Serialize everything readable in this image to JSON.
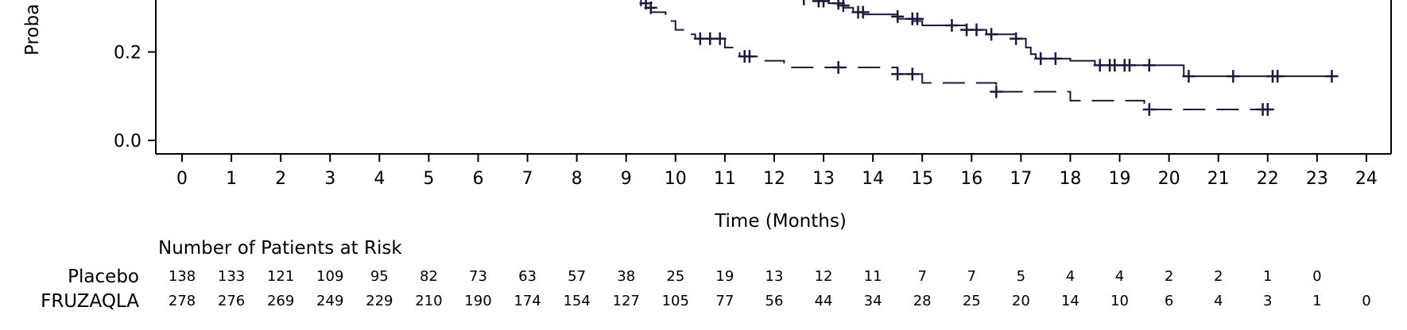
{
  "chart_data": {
    "type": "line",
    "chart_kind": "kaplan-meier",
    "ylabel": "Proba",
    "xlabel": "Time (Months)",
    "xlim": [
      0,
      24
    ],
    "ylim_visible": [
      0.0,
      0.3
    ],
    "x_ticks": [
      0,
      1,
      2,
      3,
      4,
      5,
      6,
      7,
      8,
      9,
      10,
      11,
      12,
      13,
      14,
      15,
      16,
      17,
      18,
      19,
      20,
      21,
      22,
      23,
      24
    ],
    "y_ticks": [
      0.0,
      0.2
    ],
    "line_color": "#1a1a3a",
    "series": [
      {
        "name": "Placebo",
        "style": "dashed",
        "steps": [
          [
            9.0,
            0.32
          ],
          [
            9.3,
            0.3
          ],
          [
            9.5,
            0.29
          ],
          [
            9.8,
            0.27
          ],
          [
            10.0,
            0.25
          ],
          [
            10.2,
            0.24
          ],
          [
            10.4,
            0.23
          ],
          [
            11.0,
            0.21
          ],
          [
            11.3,
            0.19
          ],
          [
            11.8,
            0.18
          ],
          [
            12.2,
            0.165
          ],
          [
            14.5,
            0.15
          ],
          [
            15.0,
            0.13
          ],
          [
            16.5,
            0.11
          ],
          [
            18.0,
            0.09
          ],
          [
            19.5,
            0.07
          ],
          [
            22.0,
            0.07
          ]
        ],
        "censor_marks": [
          [
            9.4,
            0.31
          ],
          [
            9.5,
            0.3
          ],
          [
            10.5,
            0.23
          ],
          [
            10.7,
            0.23
          ],
          [
            10.9,
            0.23
          ],
          [
            11.4,
            0.19
          ],
          [
            11.5,
            0.19
          ],
          [
            13.3,
            0.165
          ],
          [
            14.5,
            0.15
          ],
          [
            14.8,
            0.15
          ],
          [
            16.5,
            0.11
          ],
          [
            19.6,
            0.07
          ],
          [
            21.9,
            0.07
          ],
          [
            22.0,
            0.07
          ]
        ]
      },
      {
        "name": "FRUZAQLA",
        "style": "solid",
        "steps": [
          [
            12.6,
            0.32
          ],
          [
            13.1,
            0.31
          ],
          [
            13.4,
            0.3
          ],
          [
            13.6,
            0.29
          ],
          [
            13.8,
            0.285
          ],
          [
            14.5,
            0.275
          ],
          [
            14.8,
            0.27
          ],
          [
            15.0,
            0.26
          ],
          [
            15.9,
            0.25
          ],
          [
            16.3,
            0.24
          ],
          [
            16.9,
            0.23
          ],
          [
            17.1,
            0.21
          ],
          [
            17.2,
            0.195
          ],
          [
            17.3,
            0.185
          ],
          [
            18.0,
            0.18
          ],
          [
            18.5,
            0.17
          ],
          [
            20.3,
            0.145
          ],
          [
            23.3,
            0.145
          ]
        ],
        "censor_marks": [
          [
            12.6,
            0.32
          ],
          [
            12.9,
            0.315
          ],
          [
            13.0,
            0.315
          ],
          [
            13.3,
            0.31
          ],
          [
            13.4,
            0.305
          ],
          [
            13.7,
            0.29
          ],
          [
            13.8,
            0.29
          ],
          [
            14.5,
            0.28
          ],
          [
            14.8,
            0.275
          ],
          [
            14.9,
            0.275
          ],
          [
            15.6,
            0.26
          ],
          [
            15.9,
            0.25
          ],
          [
            16.1,
            0.25
          ],
          [
            16.4,
            0.24
          ],
          [
            16.9,
            0.23
          ],
          [
            17.4,
            0.185
          ],
          [
            17.7,
            0.185
          ],
          [
            18.6,
            0.17
          ],
          [
            18.8,
            0.17
          ],
          [
            18.9,
            0.17
          ],
          [
            19.1,
            0.17
          ],
          [
            19.2,
            0.17
          ],
          [
            19.6,
            0.17
          ],
          [
            20.4,
            0.145
          ],
          [
            21.3,
            0.145
          ],
          [
            22.1,
            0.145
          ],
          [
            22.2,
            0.145
          ],
          [
            23.3,
            0.145
          ]
        ]
      }
    ],
    "risk_table": {
      "title": "Number of Patients at Risk",
      "rows": [
        {
          "label": "Placebo",
          "values": [
            "138",
            "133",
            "121",
            "109",
            "95",
            "82",
            "73",
            "63",
            "57",
            "38",
            "25",
            "19",
            "13",
            "12",
            "11",
            "7",
            "7",
            "5",
            "4",
            "4",
            "2",
            "2",
            "1",
            "0"
          ]
        },
        {
          "label": "FRUZAQLA",
          "values": [
            "278",
            "276",
            "269",
            "249",
            "229",
            "210",
            "190",
            "174",
            "154",
            "127",
            "105",
            "77",
            "56",
            "44",
            "34",
            "28",
            "25",
            "20",
            "14",
            "10",
            "6",
            "4",
            "3",
            "1",
            "0"
          ]
        }
      ]
    }
  }
}
